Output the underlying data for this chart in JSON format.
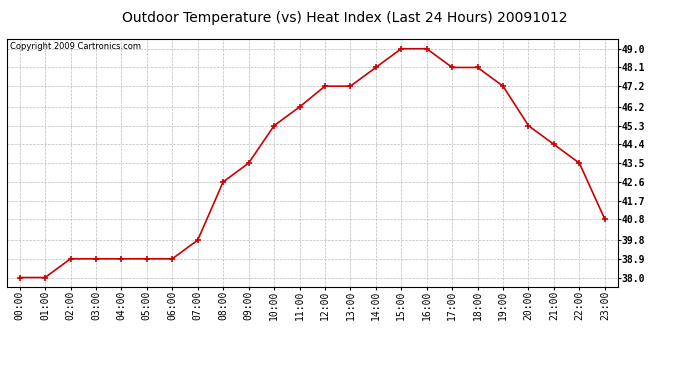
{
  "title": "Outdoor Temperature (vs) Heat Index (Last 24 Hours) 20091012",
  "copyright": "Copyright 2009 Cartronics.com",
  "x_labels": [
    "00:00",
    "01:00",
    "02:00",
    "03:00",
    "04:00",
    "05:00",
    "06:00",
    "07:00",
    "08:00",
    "09:00",
    "10:00",
    "11:00",
    "12:00",
    "13:00",
    "14:00",
    "15:00",
    "16:00",
    "17:00",
    "18:00",
    "19:00",
    "20:00",
    "21:00",
    "22:00",
    "23:00"
  ],
  "y_values": [
    38.0,
    38.0,
    38.9,
    38.9,
    38.9,
    38.9,
    38.9,
    39.8,
    42.6,
    43.5,
    45.3,
    46.2,
    47.2,
    47.2,
    48.1,
    49.0,
    49.0,
    48.1,
    48.1,
    47.2,
    45.3,
    44.4,
    43.5,
    40.8
  ],
  "y_min": 38.0,
  "y_max": 49.0,
  "y_ticks": [
    38.0,
    38.9,
    39.8,
    40.8,
    41.7,
    42.6,
    43.5,
    44.4,
    45.3,
    46.2,
    47.2,
    48.1,
    49.0
  ],
  "line_color": "#cc0000",
  "marker": "+",
  "marker_size": 5,
  "marker_color": "#cc0000",
  "bg_color": "#ffffff",
  "plot_bg_color": "#ffffff",
  "grid_color": "#bbbbbb",
  "title_fontsize": 10,
  "copyright_fontsize": 6,
  "tick_fontsize": 7,
  "line_width": 1.2
}
